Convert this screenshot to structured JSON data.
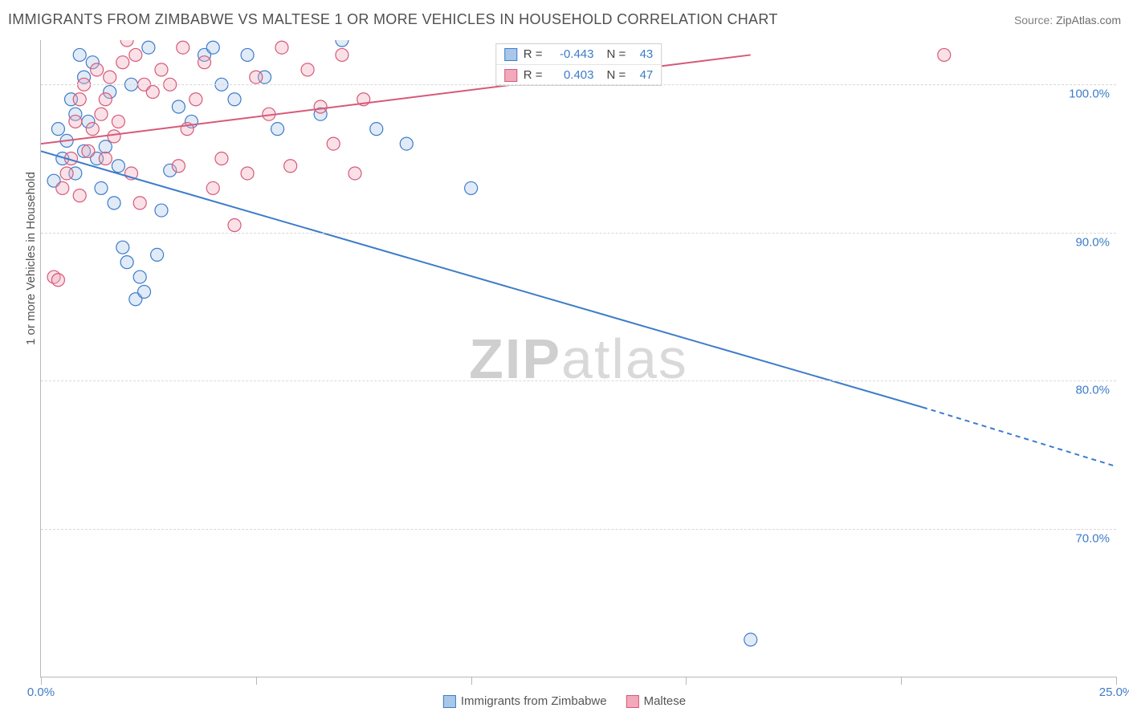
{
  "title": "IMMIGRANTS FROM ZIMBABWE VS MALTESE 1 OR MORE VEHICLES IN HOUSEHOLD CORRELATION CHART",
  "source_label": "Source: ",
  "source_name": "ZipAtlas.com",
  "ylabel": "1 or more Vehicles in Household",
  "watermark_a": "ZIP",
  "watermark_b": "atlas",
  "chart": {
    "type": "scatter",
    "background_color": "#ffffff",
    "grid_color": "#d8d8d8",
    "axis_color": "#b8b8b8",
    "tick_label_color": "#3d7cc9",
    "label_color": "#555555",
    "label_fontsize": 15,
    "title_fontsize": 18,
    "xlim": [
      0,
      25
    ],
    "ylim": [
      60,
      103
    ],
    "xticks": [
      0,
      5,
      10,
      15,
      20,
      25
    ],
    "xtick_labels": [
      "0.0%",
      "",
      "",
      "",
      "",
      "25.0%"
    ],
    "yticks": [
      70,
      80,
      90,
      100
    ],
    "ytick_labels": [
      "70.0%",
      "80.0%",
      "90.0%",
      "100.0%"
    ],
    "marker_radius": 8,
    "marker_fill_opacity": 0.35,
    "marker_stroke_width": 1.2,
    "line_width": 2,
    "series": [
      {
        "name": "Immigrants from Zimbabwe",
        "color_stroke": "#3d7cc9",
        "color_fill": "#a9c7e8",
        "r": "-0.443",
        "n": "43",
        "regression": {
          "x1": 0,
          "y1": 95.5,
          "x2": 20.5,
          "y2": 78.2,
          "dash_from_x": 20.5,
          "x3": 25,
          "y3": 74.2
        },
        "points": [
          [
            0.4,
            97.0
          ],
          [
            0.6,
            96.2
          ],
          [
            0.7,
            99.0
          ],
          [
            0.8,
            98.0
          ],
          [
            0.8,
            94.0
          ],
          [
            0.9,
            102.0
          ],
          [
            1.0,
            100.5
          ],
          [
            1.1,
            97.5
          ],
          [
            1.2,
            101.5
          ],
          [
            1.3,
            95.0
          ],
          [
            1.4,
            93.0
          ],
          [
            1.5,
            95.8
          ],
          [
            1.6,
            99.5
          ],
          [
            1.7,
            92.0
          ],
          [
            1.8,
            94.5
          ],
          [
            1.9,
            89.0
          ],
          [
            2.0,
            88.0
          ],
          [
            2.1,
            100.0
          ],
          [
            2.2,
            85.5
          ],
          [
            2.3,
            87.0
          ],
          [
            2.4,
            86.0
          ],
          [
            2.5,
            102.5
          ],
          [
            2.7,
            88.5
          ],
          [
            3.0,
            94.2
          ],
          [
            3.2,
            98.5
          ],
          [
            3.5,
            97.5
          ],
          [
            3.8,
            102.0
          ],
          [
            4.0,
            102.5
          ],
          [
            4.2,
            100.0
          ],
          [
            4.5,
            99.0
          ],
          [
            4.8,
            102.0
          ],
          [
            5.2,
            100.5
          ],
          [
            5.5,
            97.0
          ],
          [
            6.5,
            98.0
          ],
          [
            7.0,
            103.0
          ],
          [
            7.8,
            97.0
          ],
          [
            8.5,
            96.0
          ],
          [
            10.0,
            93.0
          ],
          [
            2.8,
            91.5
          ],
          [
            0.5,
            95.0
          ],
          [
            1.0,
            95.5
          ],
          [
            0.3,
            93.5
          ],
          [
            16.5,
            62.5
          ]
        ]
      },
      {
        "name": "Maltese",
        "color_stroke": "#d65a78",
        "color_fill": "#f2a9bb",
        "r": "0.403",
        "n": "47",
        "regression": {
          "x1": 0,
          "y1": 96.0,
          "x2": 16.5,
          "y2": 102.0,
          "dash_from_x": 16.5,
          "x3": 16.5,
          "y3": 102.0
        },
        "points": [
          [
            0.3,
            87.0
          ],
          [
            0.4,
            86.8
          ],
          [
            0.5,
            93.0
          ],
          [
            0.6,
            94.0
          ],
          [
            0.7,
            95.0
          ],
          [
            0.8,
            97.5
          ],
          [
            0.9,
            99.0
          ],
          [
            1.0,
            100.0
          ],
          [
            1.1,
            95.5
          ],
          [
            1.2,
            97.0
          ],
          [
            1.3,
            101.0
          ],
          [
            1.4,
            98.0
          ],
          [
            1.5,
            99.0
          ],
          [
            1.6,
            100.5
          ],
          [
            1.7,
            96.5
          ],
          [
            1.8,
            97.5
          ],
          [
            1.9,
            101.5
          ],
          [
            2.0,
            103.0
          ],
          [
            2.1,
            94.0
          ],
          [
            2.3,
            92.0
          ],
          [
            2.4,
            100.0
          ],
          [
            2.6,
            99.5
          ],
          [
            2.8,
            101.0
          ],
          [
            3.0,
            100.0
          ],
          [
            3.2,
            94.5
          ],
          [
            3.4,
            97.0
          ],
          [
            3.6,
            99.0
          ],
          [
            3.8,
            101.5
          ],
          [
            4.0,
            93.0
          ],
          [
            4.2,
            95.0
          ],
          [
            4.5,
            90.5
          ],
          [
            4.8,
            94.0
          ],
          [
            5.0,
            100.5
          ],
          [
            5.3,
            98.0
          ],
          [
            5.6,
            102.5
          ],
          [
            5.8,
            94.5
          ],
          [
            6.2,
            101.0
          ],
          [
            6.5,
            98.5
          ],
          [
            6.8,
            96.0
          ],
          [
            7.0,
            102.0
          ],
          [
            7.3,
            94.0
          ],
          [
            7.5,
            99.0
          ],
          [
            3.3,
            102.5
          ],
          [
            2.2,
            102.0
          ],
          [
            1.5,
            95.0
          ],
          [
            0.9,
            92.5
          ],
          [
            21.0,
            102.0
          ]
        ]
      }
    ]
  },
  "corr_box": {
    "r_label": "R =",
    "n_label": "N ="
  },
  "legend_labels": [
    "Immigrants from Zimbabwe",
    "Maltese"
  ]
}
